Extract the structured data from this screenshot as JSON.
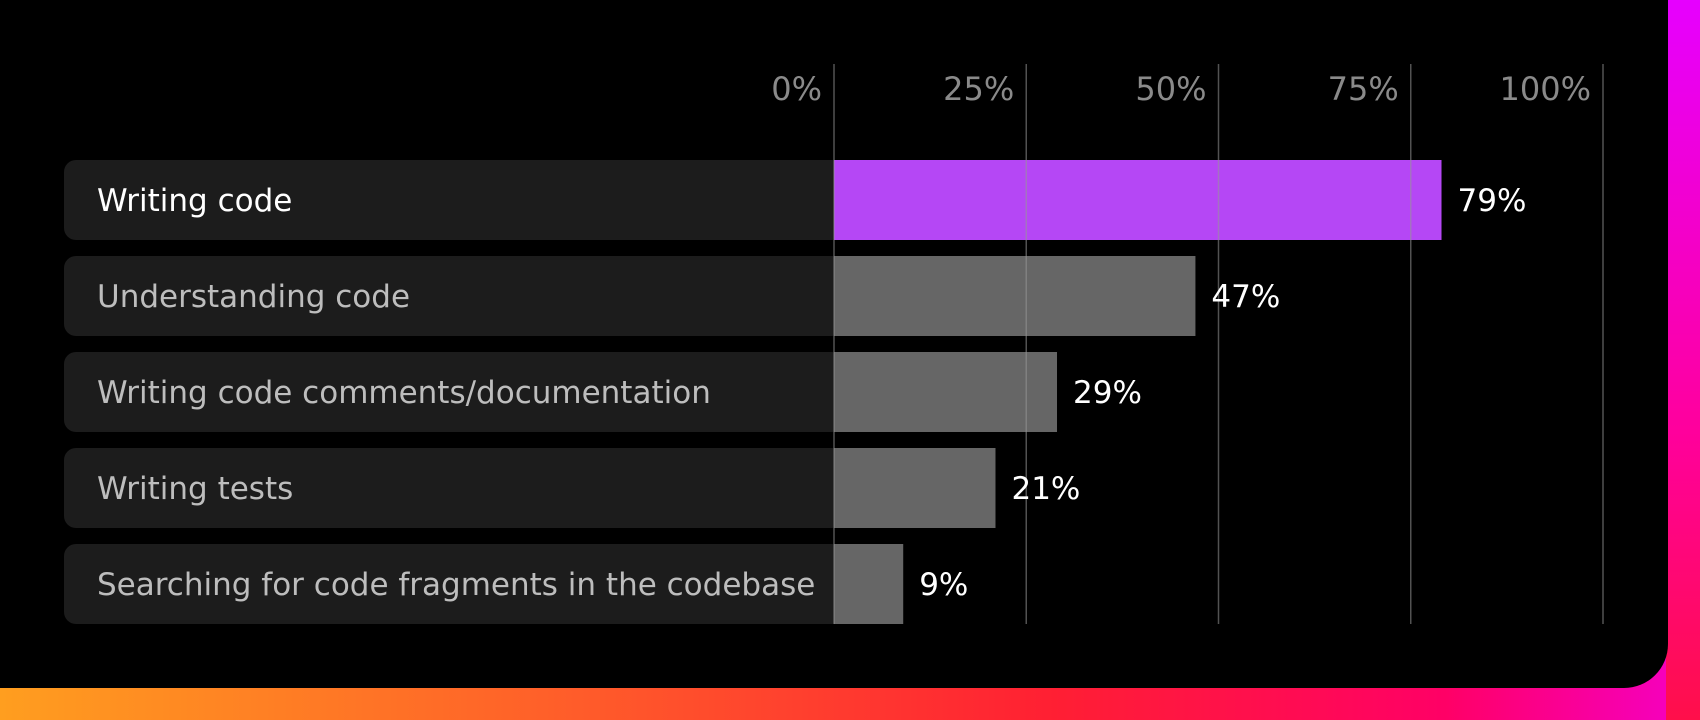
{
  "colors": {
    "highlight": "#b547f5",
    "bar": "#666666",
    "row_background": "#1c1c1c",
    "grid": "#4a4a4a",
    "tick_text": "#8a8a8a"
  },
  "chart_data": {
    "type": "bar",
    "orientation": "horizontal",
    "categories": [
      "Writing code",
      "Understanding code",
      "Writing code comments/documentation",
      "Writing tests",
      "Searching for code fragments in the codebase"
    ],
    "values": [
      79,
      47,
      29,
      21,
      9
    ],
    "value_labels": [
      "79%",
      "47%",
      "29%",
      "21%",
      "9%"
    ],
    "highlight_index": 0,
    "xlim": [
      0,
      100
    ],
    "x_ticks": [
      0,
      25,
      50,
      75,
      100
    ],
    "x_tick_labels": [
      "0%",
      "25%",
      "50%",
      "75%",
      "100%"
    ],
    "grid": true,
    "legend": "none"
  }
}
